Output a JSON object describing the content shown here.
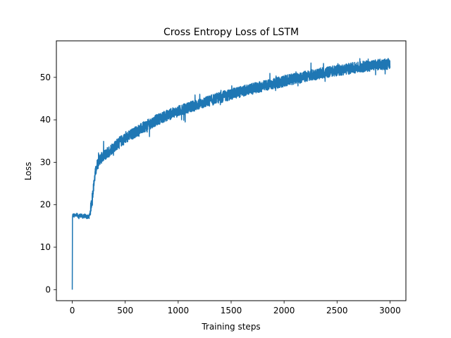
{
  "chart_data": {
    "type": "line",
    "title": "Cross Entropy Loss of LSTM",
    "xlabel": "Training steps",
    "ylabel": "Loss",
    "xlim": [
      -150,
      3150
    ],
    "ylim": [
      -2.6,
      58.6
    ],
    "xticks": [
      0,
      500,
      1000,
      1500,
      2000,
      2500,
      3000
    ],
    "yticks": [
      0,
      10,
      20,
      30,
      40,
      50
    ],
    "grid": false,
    "legend": "none",
    "color": "#1f77b4",
    "series": [
      {
        "points": [
          [
            0,
            0
          ],
          [
            2,
            17
          ],
          [
            5,
            17.6
          ],
          [
            20,
            17.4
          ],
          [
            40,
            17.6
          ],
          [
            60,
            17.3
          ],
          [
            80,
            17.5
          ],
          [
            100,
            17.2
          ],
          [
            120,
            17.4
          ],
          [
            140,
            17.1
          ],
          [
            160,
            17.2
          ],
          [
            170,
            18.5
          ],
          [
            185,
            21
          ],
          [
            200,
            24
          ],
          [
            215,
            27
          ],
          [
            230,
            29
          ],
          [
            250,
            30.5
          ],
          [
            300,
            31.5
          ],
          [
            350,
            32.7
          ],
          [
            400,
            33.8
          ],
          [
            450,
            34.8
          ],
          [
            500,
            35.6
          ],
          [
            600,
            37.2
          ],
          [
            700,
            38.6
          ],
          [
            800,
            40
          ],
          [
            900,
            41.1
          ],
          [
            1000,
            42
          ],
          [
            1100,
            42.9
          ],
          [
            1200,
            43.7
          ],
          [
            1300,
            44.5
          ],
          [
            1400,
            45.3
          ],
          [
            1500,
            46
          ],
          [
            1600,
            46.7
          ],
          [
            1700,
            47.3
          ],
          [
            1800,
            47.9
          ],
          [
            1900,
            48.5
          ],
          [
            2000,
            49.1
          ],
          [
            2100,
            49.7
          ],
          [
            2200,
            50.2
          ],
          [
            2300,
            50.7
          ],
          [
            2400,
            51.2
          ],
          [
            2500,
            51.6
          ],
          [
            2600,
            52
          ],
          [
            2700,
            52.4
          ],
          [
            2800,
            52.7
          ],
          [
            2900,
            53
          ],
          [
            3000,
            53.2
          ]
        ],
        "noise_amplitude": 1.3
      }
    ]
  }
}
